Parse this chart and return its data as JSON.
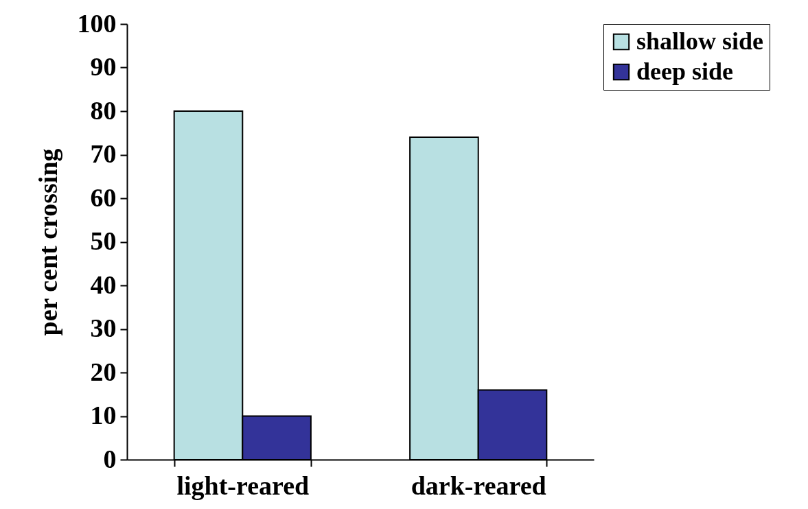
{
  "chart_data": {
    "type": "bar",
    "ylabel": "per cent crossing",
    "categories": [
      "light-reared",
      "dark-reared"
    ],
    "series": [
      {
        "name": "shallow side",
        "color": "#b8e0e2",
        "values": [
          80,
          74
        ]
      },
      {
        "name": "deep side",
        "color": "#333399",
        "values": [
          10,
          16
        ]
      }
    ],
    "ylim": [
      0,
      100
    ],
    "yticks": [
      0,
      10,
      20,
      30,
      40,
      50,
      60,
      70,
      80,
      90,
      100
    ],
    "grid": false,
    "legend": "right"
  }
}
